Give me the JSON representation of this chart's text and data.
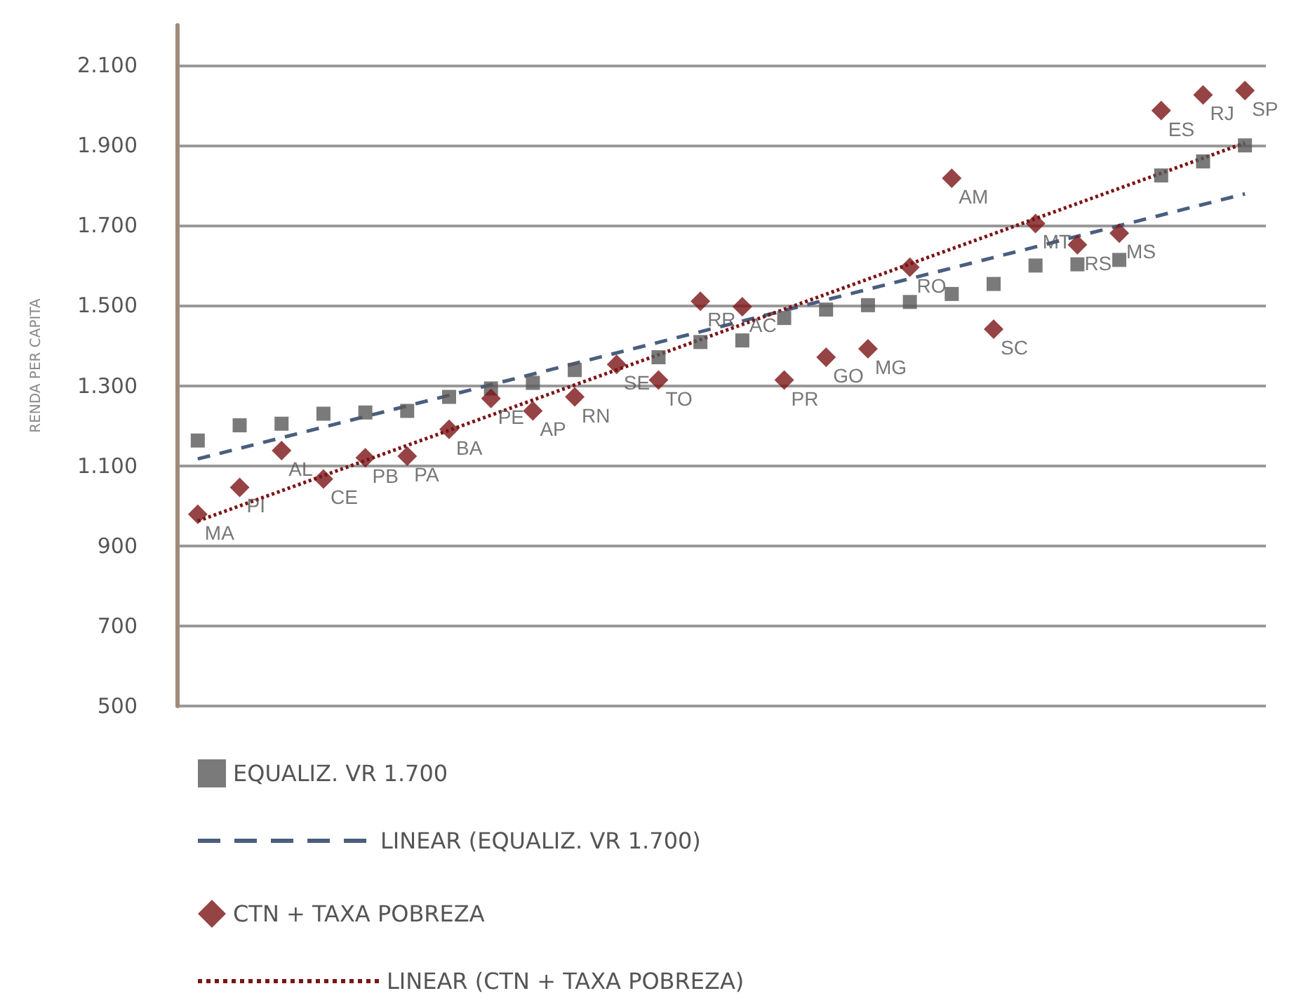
{
  "chart_data": {
    "type": "scatter",
    "ylabel": "RENDA PER CAPITA",
    "categories": [
      null,
      null,
      null,
      null,
      null,
      null,
      null,
      null,
      null,
      null,
      null,
      null,
      null,
      null,
      null,
      null,
      null,
      null,
      null,
      null,
      null,
      null,
      null,
      null,
      null,
      null
    ],
    "series": [
      {
        "name": "EQUALIZ. VR 1.700",
        "marker": "square",
        "color": "#595959",
        "values": [
          1163,
          1201,
          1205,
          1230,
          1233,
          1237,
          1272,
          1293,
          1307,
          1339,
          null,
          1371,
          1409,
          1413,
          1469,
          1490,
          1501,
          1509,
          1529,
          1554,
          1600,
          1603,
          1614,
          1825,
          1860,
          1900
        ]
      },
      {
        "name": "LINEAR (EQUALIZ. VR 1.700)",
        "type": "line",
        "marker": "none",
        "line_style": "dashed",
        "color": "#4a5f7e",
        "values": [
          1117,
          null,
          null,
          null,
          null,
          null,
          null,
          null,
          null,
          null,
          null,
          null,
          null,
          null,
          null,
          null,
          null,
          null,
          null,
          null,
          null,
          null,
          null,
          null,
          null,
          1779
        ]
      },
      {
        "name": "CTN + TAXA POBREZA",
        "marker": "diamond",
        "color": "#7b1416",
        "values": [
          979,
          1046,
          1138,
          1067,
          1120,
          1124,
          1191,
          1268,
          1237,
          1272,
          1353,
          1314,
          1511,
          1497,
          1314,
          1371,
          1392,
          1596,
          1818,
          1441,
          1705,
          1652,
          1681,
          1987,
          2026,
          2037
        ],
        "value_labels": [
          "MA",
          "PI",
          "AL",
          "CE",
          "PB",
          "PA",
          "BA",
          "PE",
          "AP",
          "RN",
          "SE",
          "TO",
          "RR",
          "AC",
          "PR",
          "GO",
          "MG",
          "RO",
          "AM",
          "SC",
          "MT",
          "RS",
          "MS",
          "ES",
          "RJ",
          "SP"
        ]
      },
      {
        "name": "LINEAR (CTN + TAXA POBREZA)",
        "type": "line",
        "marker": "none",
        "line_style": "dotted",
        "color": "#7b1416",
        "values": [
          962,
          null,
          null,
          null,
          null,
          null,
          null,
          null,
          null,
          null,
          null,
          null,
          null,
          null,
          null,
          null,
          null,
          null,
          null,
          null,
          null,
          null,
          null,
          null,
          null,
          1906
        ]
      }
    ],
    "ylim": [
      500,
      2200
    ],
    "yticks": [
      500,
      700,
      900,
      {
        "value": 1100,
        "label": "1.100"
      },
      {
        "value": 1300,
        "label": "1.300"
      },
      {
        "value": 1500,
        "label": "1.500"
      },
      {
        "value": 1700,
        "label": "1.700"
      },
      {
        "value": 1900,
        "label": "1.900"
      },
      {
        "value": 2100,
        "label": "2.100"
      }
    ],
    "grid": "y",
    "legend": "bottom",
    "tick_labels": "y"
  }
}
